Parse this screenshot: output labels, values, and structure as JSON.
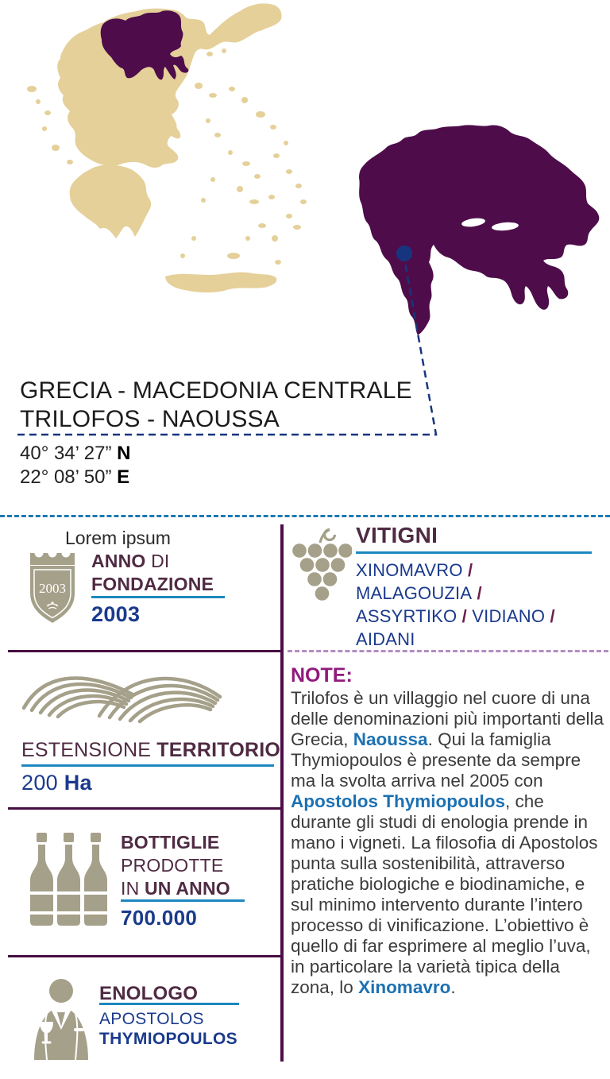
{
  "header": {
    "region_title_line1": "GRECIA - MACEDONIA CENTRALE",
    "region_title_line2": "TRILOFOS - NAOUSSA",
    "latitude": "40° 34’ 27”",
    "latitude_dir": "N",
    "longitude": "22° 08’ 50”",
    "longitude_dir": "E"
  },
  "facts": {
    "caption": "Lorem ipsum",
    "founding": {
      "label_part1_bold": "ANNO",
      "label_part1_rest": " DI",
      "label_part2_bold": "FONDAZIONE",
      "shield_year": "2003",
      "value": "2003"
    },
    "territory": {
      "label_regular": "ESTENSIONE ",
      "label_bold": "TERRITORIO",
      "value_number": "200 ",
      "value_unit": "Ha"
    },
    "bottles": {
      "label_line1_bold": "BOTTIGLIE",
      "label_line2": "PRODOTTE",
      "label_line3_regular": "IN ",
      "label_line3_bold": "UN ANNO",
      "value": "700.000"
    },
    "enologist": {
      "label": "ENOLOGO",
      "first_name": "APOSTOLOS",
      "last_name": "THYMIOPOULOS"
    }
  },
  "vitigni": {
    "title": "VITIGNI",
    "separator": "/",
    "lines": [
      [
        "XINOMAVRO"
      ],
      [
        "MALAGOUZIA"
      ],
      [
        "ASSYRTIKO",
        "VIDIANO"
      ],
      [
        "AIDANI"
      ]
    ]
  },
  "note": {
    "title": "NOTE:",
    "segments": [
      {
        "text": "Trilofos è un villaggio nel cuore di una delle denominazioni più importanti della Grecia, ",
        "style": "normal"
      },
      {
        "text": "Naoussa",
        "style": "highlight"
      },
      {
        "text": ". Qui la famiglia Thymiopoulos è presente da sempre ma la svolta arriva nel 2005 con ",
        "style": "normal"
      },
      {
        "text": "Apostolos Thymiopoulos",
        "style": "highlight"
      },
      {
        "text": ", che durante gli studi di enologia prende in mano i vigneti. La filosofia di Apostolos punta sulla sostenibilità, attraverso pratiche biologiche e biodinamiche, e sul minimo intervento durante l’intero processo di vinificazione. L’obiettivo è quello di far esprimere al meglio l’uva, in particolare la varietà tipica della zona, lo ",
        "style": "normal"
      },
      {
        "text": "Xinomavro",
        "style": "highlight"
      },
      {
        "text": ".",
        "style": "normal"
      }
    ]
  },
  "colors": {
    "map_base": "#e5d09a",
    "map_highlight": "#4e0d4a",
    "accent_navy": "#1a3a8c",
    "leader_navy": "#17357e",
    "accent_blue_line": "#1e87c0",
    "top_divider_blue": "#1d7ab2",
    "label_plum": "#4f2b43",
    "note_magenta": "#911a7c",
    "note_link_blue": "#1d71b2",
    "icon_taupe": "#a5a089",
    "divider_lavender": "#b48cc4"
  }
}
